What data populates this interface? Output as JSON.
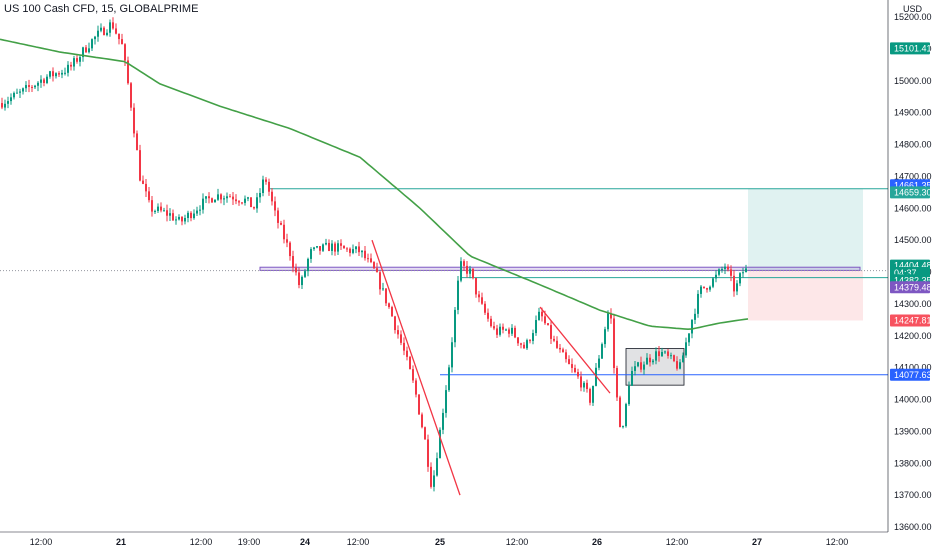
{
  "header": {
    "symbol_title": "US 100 Cash CFD, 15, GLOBALPRIME",
    "currency": "USD"
  },
  "chart_data": {
    "type": "candlestick",
    "title": "US 100 Cash CFD, 15, GLOBALPRIME",
    "ylim": [
      13600,
      15200
    ],
    "y_ticks": [
      15200,
      15100,
      15000,
      14900,
      14800,
      14700,
      14600,
      14500,
      14400,
      14300,
      14200,
      14100,
      14000,
      13900,
      13800,
      13700,
      13600
    ],
    "x_ticks": [
      "12:00",
      "21",
      "12:00",
      "19:00",
      "24",
      "12:00",
      "25",
      "12:00",
      "26",
      "12:00",
      "27",
      "12:00"
    ],
    "price_path": [
      {
        "t": 0,
        "p": 14930
      },
      {
        "t": 20,
        "p": 14960
      },
      {
        "t": 45,
        "p": 15010
      },
      {
        "t": 70,
        "p": 15040
      },
      {
        "t": 90,
        "p": 15120
      },
      {
        "t": 100,
        "p": 15150
      },
      {
        "t": 112,
        "p": 15180
      },
      {
        "t": 122,
        "p": 15110
      },
      {
        "t": 130,
        "p": 14950
      },
      {
        "t": 140,
        "p": 14700
      },
      {
        "t": 150,
        "p": 14600
      },
      {
        "t": 170,
        "p": 14580
      },
      {
        "t": 180,
        "p": 14555
      },
      {
        "t": 200,
        "p": 14610
      },
      {
        "t": 215,
        "p": 14640
      },
      {
        "t": 230,
        "p": 14640
      },
      {
        "t": 245,
        "p": 14625
      },
      {
        "t": 255,
        "p": 14600
      },
      {
        "t": 265,
        "p": 14700
      },
      {
        "t": 275,
        "p": 14580
      },
      {
        "t": 290,
        "p": 14460
      },
      {
        "t": 300,
        "p": 14350
      },
      {
        "t": 310,
        "p": 14460
      },
      {
        "t": 330,
        "p": 14480
      },
      {
        "t": 345,
        "p": 14470
      },
      {
        "t": 360,
        "p": 14465
      },
      {
        "t": 375,
        "p": 14400
      },
      {
        "t": 390,
        "p": 14280
      },
      {
        "t": 405,
        "p": 14140
      },
      {
        "t": 415,
        "p": 14030
      },
      {
        "t": 425,
        "p": 13870
      },
      {
        "t": 432,
        "p": 13720
      },
      {
        "t": 440,
        "p": 13900
      },
      {
        "t": 450,
        "p": 14130
      },
      {
        "t": 460,
        "p": 14420
      },
      {
        "t": 470,
        "p": 14400
      },
      {
        "t": 480,
        "p": 14300
      },
      {
        "t": 495,
        "p": 14210
      },
      {
        "t": 510,
        "p": 14220
      },
      {
        "t": 525,
        "p": 14160
      },
      {
        "t": 540,
        "p": 14270
      },
      {
        "t": 555,
        "p": 14170
      },
      {
        "t": 570,
        "p": 14100
      },
      {
        "t": 580,
        "p": 14060
      },
      {
        "t": 590,
        "p": 14000
      },
      {
        "t": 600,
        "p": 14150
      },
      {
        "t": 610,
        "p": 14300
      },
      {
        "t": 615,
        "p": 14050
      },
      {
        "t": 622,
        "p": 13880
      },
      {
        "t": 630,
        "p": 14080
      },
      {
        "t": 645,
        "p": 14120
      },
      {
        "t": 660,
        "p": 14150
      },
      {
        "t": 680,
        "p": 14100
      },
      {
        "t": 690,
        "p": 14230
      },
      {
        "t": 700,
        "p": 14340
      },
      {
        "t": 715,
        "p": 14380
      },
      {
        "t": 725,
        "p": 14420
      },
      {
        "t": 735,
        "p": 14340
      },
      {
        "t": 742,
        "p": 14400
      },
      {
        "t": 748,
        "p": 14407
      }
    ],
    "moving_average": [
      {
        "t": 0,
        "p": 15130
      },
      {
        "t": 60,
        "p": 15090
      },
      {
        "t": 125,
        "p": 15060
      },
      {
        "t": 160,
        "p": 14990
      },
      {
        "t": 220,
        "p": 14920
      },
      {
        "t": 290,
        "p": 14850
      },
      {
        "t": 360,
        "p": 14760
      },
      {
        "t": 420,
        "p": 14600
      },
      {
        "t": 470,
        "p": 14450
      },
      {
        "t": 540,
        "p": 14360
      },
      {
        "t": 600,
        "p": 14280
      },
      {
        "t": 650,
        "p": 14230
      },
      {
        "t": 690,
        "p": 14220
      },
      {
        "t": 720,
        "p": 14240
      },
      {
        "t": 748,
        "p": 14253
      }
    ],
    "trendlines": [
      {
        "from": {
          "t": 372,
          "p": 14500
        },
        "to": {
          "t": 460,
          "p": 13700
        }
      },
      {
        "from": {
          "t": 540,
          "p": 14290
        },
        "to": {
          "t": 610,
          "p": 14020
        }
      }
    ],
    "horizontal_levels": [
      {
        "p": 14661.35,
        "color": "#26a69a",
        "from_t": 268
      },
      {
        "p": 14382.35,
        "color": "#26a69a",
        "from_t": 460
      },
      {
        "p": 14077.63,
        "color": "#2962ff",
        "from_t": 440
      }
    ],
    "current_price_line": {
      "p": 14404.48,
      "color": "#9598a1"
    },
    "zones": [
      {
        "kind": "supply-demand",
        "t0": 260,
        "t1": 860,
        "p_top": 14415,
        "p_bottom": 14405,
        "color": "#7e57c2"
      },
      {
        "kind": "consolidation",
        "t0": 626,
        "t1": 684,
        "p_top": 14160,
        "p_bottom": 14045,
        "color": "#787b86"
      }
    ],
    "position_tool": {
      "t0": 748,
      "t1": 863,
      "entry": 14404.48,
      "target": 14661.35,
      "stop": 14247.81
    },
    "price_labels": [
      {
        "value": "15101.41",
        "p": 15101.41,
        "color": "#089981"
      },
      {
        "value": "14661.35",
        "p": 14672,
        "color": "#2962ff"
      },
      {
        "value": "14659.30",
        "p": 14650,
        "color": "#26a69a"
      },
      {
        "value": "14404.48",
        "p": 14420,
        "color": "#089981"
      },
      {
        "value": "04:37",
        "p": 14397,
        "color": "#089981"
      },
      {
        "value": "14382.35",
        "p": 14374,
        "color": "#089981"
      },
      {
        "value": "14379.48",
        "p": 14352,
        "color": "#7e57c2"
      },
      {
        "value": "14247.81",
        "p": 14247.81,
        "color": "#f7525f"
      },
      {
        "value": "14077.63",
        "p": 14077.63,
        "color": "#2962ff"
      }
    ]
  }
}
